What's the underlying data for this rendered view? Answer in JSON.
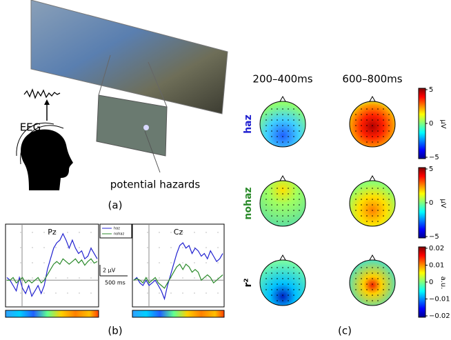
{
  "panel_a": {
    "label": "(a)",
    "eeg": "EEG",
    "hazards": "potential hazards"
  },
  "panel_b": {
    "label": "(b)",
    "scale_y": "2 µV",
    "scale_x": "500 ms",
    "ylim": [
      -5,
      10.5
    ],
    "plots": [
      {
        "title": "Pz",
        "series": [
          {
            "name": "haz",
            "color": "#2020d0",
            "values": [
              0.5,
              0,
              -1,
              -2,
              0.5,
              -1.5,
              -2.5,
              -1,
              -3,
              -2,
              -1,
              -2.5,
              -1,
              2,
              4,
              6,
              7,
              7.5,
              8.7,
              7.5,
              6,
              7.5,
              6,
              5,
              5.5,
              4,
              4.5,
              6,
              5,
              4
            ]
          },
          {
            "name": "nohaz",
            "color": "#2a8a2a",
            "values": [
              0,
              0,
              0.5,
              -0.5,
              0,
              0.5,
              -0.5,
              0,
              -0.5,
              0,
              0.5,
              -0.5,
              0,
              1,
              2,
              3,
              3.5,
              3,
              4,
              3.5,
              3,
              3.5,
              4,
              3.2,
              3.8,
              2.8,
              3.5,
              4,
              3.2,
              3.5
            ]
          }
        ]
      },
      {
        "title": "Cz",
        "series": [
          {
            "name": "haz",
            "color": "#2020d0",
            "values": [
              0,
              0.5,
              -0.5,
              -1,
              0,
              -1,
              -0.5,
              0,
              -1,
              -2,
              -3.5,
              -1,
              1,
              3,
              5,
              6.5,
              7,
              6,
              6.5,
              5,
              6,
              5.5,
              4.5,
              5,
              4,
              5.5,
              4.5,
              3.5,
              4,
              5
            ]
          },
          {
            "name": "nohaz",
            "color": "#2a8a2a",
            "values": [
              0,
              0.3,
              0,
              -0.5,
              0.5,
              -0.5,
              0,
              0.5,
              -0.5,
              -1,
              -1.5,
              -0.5,
              0.5,
              1.5,
              2.5,
              3,
              2,
              3,
              2.5,
              1.5,
              2,
              1.5,
              0,
              0.5,
              1,
              0.5,
              -0.5,
              0,
              0.5,
              1
            ]
          }
        ]
      }
    ]
  },
  "panel_c": {
    "label": "(c)",
    "columns": [
      "200–400ms",
      "600–800ms"
    ],
    "rows": [
      "haz",
      "nohaz",
      "r²"
    ],
    "colorbars": [
      {
        "ticks": [
          "5",
          "0",
          "−5"
        ],
        "unit": "µV"
      },
      {
        "ticks": [
          "5",
          "0",
          "−5"
        ],
        "unit": "µV"
      },
      {
        "ticks": [
          "0.02",
          "0.01",
          "0",
          "−0.01",
          "−0.02"
        ],
        "unit": "a.u."
      }
    ]
  }
}
